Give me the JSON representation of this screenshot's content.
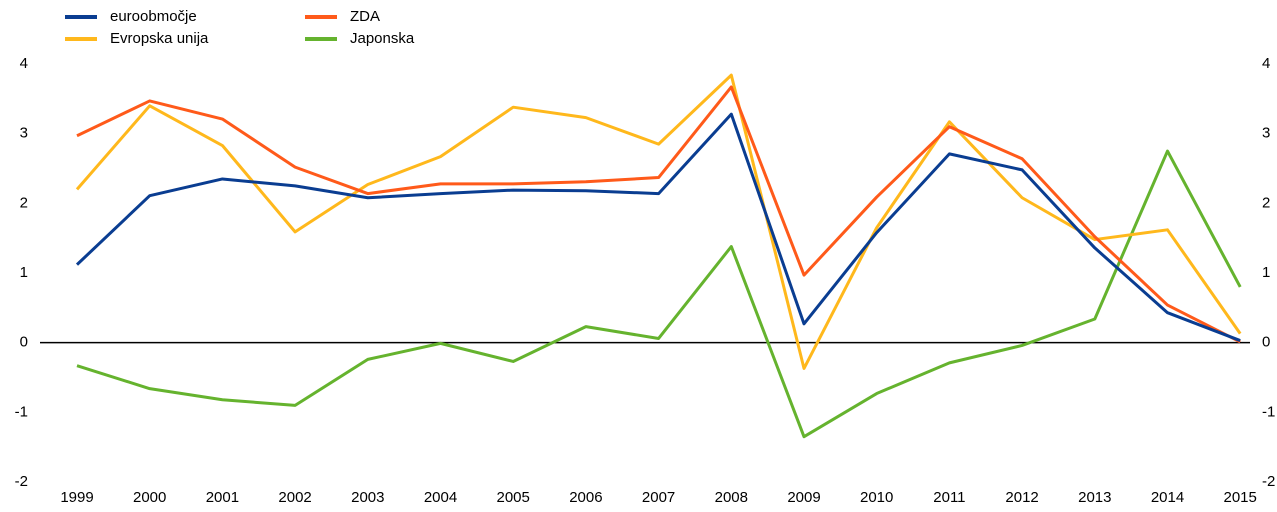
{
  "chart_data": {
    "type": "line",
    "categories": [
      "1999",
      "2000",
      "2001",
      "2002",
      "2003",
      "2004",
      "2005",
      "2006",
      "2007",
      "2008",
      "2009",
      "2010",
      "2011",
      "2012",
      "2013",
      "2014",
      "2015"
    ],
    "series": [
      {
        "name": "euroobmočje",
        "color": "#0a3d91",
        "values": [
          1.12,
          2.11,
          2.35,
          2.25,
          2.08,
          2.14,
          2.19,
          2.18,
          2.14,
          3.28,
          0.27,
          1.58,
          2.71,
          2.48,
          1.36,
          0.43,
          0.03
        ]
      },
      {
        "name": "ZDA",
        "color": "#ff5a1a",
        "values": [
          2.97,
          3.47,
          3.21,
          2.52,
          2.14,
          2.28,
          2.28,
          2.31,
          2.37,
          3.67,
          0.97,
          2.09,
          3.1,
          2.64,
          1.52,
          0.54,
          0.01
        ]
      },
      {
        "name": "Evropska unija",
        "color": "#ffb81c",
        "values": [
          2.2,
          3.4,
          2.83,
          1.59,
          2.27,
          2.67,
          3.38,
          3.23,
          2.85,
          3.84,
          -0.37,
          1.65,
          3.17,
          2.08,
          1.48,
          1.62,
          0.13
        ]
      },
      {
        "name": "Japonska",
        "color": "#65b32e",
        "values": [
          -0.33,
          -0.66,
          -0.82,
          -0.9,
          -0.24,
          -0.01,
          -0.27,
          0.23,
          0.06,
          1.38,
          -1.35,
          -0.73,
          -0.29,
          -0.04,
          0.34,
          2.75,
          0.8
        ]
      }
    ],
    "ylim": [
      -2,
      4
    ],
    "yticks": [
      -2,
      -1,
      0,
      1,
      2,
      3,
      4
    ],
    "y2lim": [
      -2,
      4
    ],
    "y2ticks": [
      -2,
      -1,
      0,
      1,
      2,
      3,
      4
    ]
  }
}
